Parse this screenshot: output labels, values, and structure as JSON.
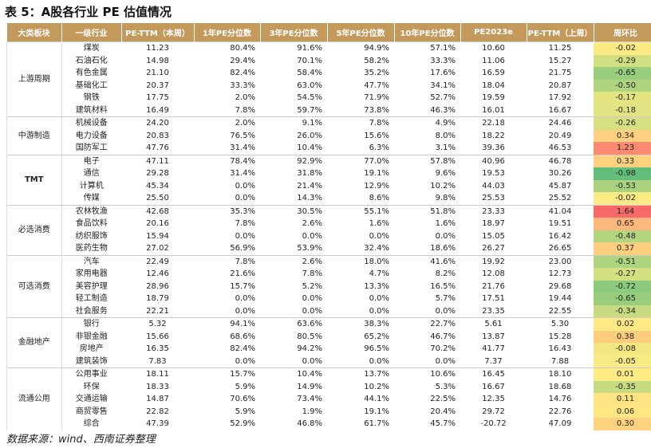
{
  "title": "表 5：A股各行业 PE 估值情况",
  "table": {
    "header": [
      "大类板块",
      "一级行业",
      "PE-TTM（本周）",
      "1年PE分位数",
      "3年PE分位数",
      "5年PE分位数",
      "10年PE分位数",
      "PE2023e",
      "PE-TTM（上周）",
      "周环比"
    ],
    "groups": [
      {
        "name": "上游周期",
        "rows": [
          [
            "煤炭",
            "11.23",
            "80.4%",
            "91.6%",
            "94.9%",
            "57.1%",
            "10.60",
            "11.25",
            "-0.02"
          ],
          [
            "石油石化",
            "14.98",
            "29.4%",
            "70.1%",
            "58.2%",
            "33.3%",
            "11.06",
            "15.27",
            "-0.29"
          ],
          [
            "有色金属",
            "21.10",
            "82.4%",
            "58.4%",
            "35.2%",
            "17.6%",
            "16.59",
            "21.75",
            "-0.65"
          ],
          [
            "基础化工",
            "20.37",
            "33.3%",
            "63.0%",
            "47.7%",
            "34.1%",
            "18.04",
            "20.87",
            "-0.50"
          ],
          [
            "钢铁",
            "17.75",
            "2.0%",
            "54.5%",
            "71.9%",
            "52.7%",
            "19.59",
            "17.92",
            "-0.17"
          ],
          [
            "建筑材料",
            "16.49",
            "7.8%",
            "59.7%",
            "73.8%",
            "46.3%",
            "16.01",
            "16.67",
            "-0.18"
          ]
        ]
      },
      {
        "name": "中游制造",
        "rows": [
          [
            "机械设备",
            "24.20",
            "2.0%",
            "9.1%",
            "7.8%",
            "4.9%",
            "22.18",
            "24.46",
            "-0.26"
          ],
          [
            "电力设备",
            "20.83",
            "76.5%",
            "26.0%",
            "15.6%",
            "8.0%",
            "18.22",
            "20.49",
            "0.34"
          ],
          [
            "国防军工",
            "47.76",
            "31.4%",
            "10.4%",
            "6.3%",
            "3.1%",
            "39.36",
            "46.53",
            "1.23"
          ]
        ]
      },
      {
        "name": "TMT",
        "rows": [
          [
            "电子",
            "47.11",
            "78.4%",
            "92.9%",
            "77.0%",
            "57.8%",
            "40.96",
            "46.78",
            "0.33"
          ],
          [
            "通信",
            "29.28",
            "31.4%",
            "31.8%",
            "19.1%",
            "9.6%",
            "19.53",
            "30.26",
            "-0.98"
          ],
          [
            "计算机",
            "45.34",
            "0.0%",
            "21.4%",
            "12.9%",
            "10.2%",
            "44.03",
            "45.87",
            "-0.53"
          ],
          [
            "传媒",
            "25.50",
            "0.0%",
            "14.3%",
            "8.6%",
            "9.8%",
            "25.53",
            "25.52",
            "-0.02"
          ]
        ]
      },
      {
        "name": "必选消费",
        "rows": [
          [
            "农林牧渔",
            "42.68",
            "35.3%",
            "30.5%",
            "55.1%",
            "51.8%",
            "23.33",
            "41.04",
            "1.64"
          ],
          [
            "食品饮料",
            "20.16",
            "7.8%",
            "2.6%",
            "1.6%",
            "1.6%",
            "18.97",
            "19.51",
            "0.65"
          ],
          [
            "纺织服饰",
            "15.94",
            "0.0%",
            "0.0%",
            "0.0%",
            "0.0%",
            "15.05",
            "16.42",
            "-0.48"
          ],
          [
            "医药生物",
            "27.02",
            "56.9%",
            "53.9%",
            "32.4%",
            "18.6%",
            "26.27",
            "26.65",
            "0.37"
          ]
        ]
      },
      {
        "name": "可选消费",
        "rows": [
          [
            "汽车",
            "22.49",
            "7.8%",
            "2.6%",
            "18.0%",
            "41.6%",
            "19.92",
            "23.00",
            "-0.51"
          ],
          [
            "家用电器",
            "12.46",
            "21.6%",
            "7.8%",
            "4.7%",
            "8.2%",
            "12.08",
            "12.73",
            "-0.27"
          ],
          [
            "美容护理",
            "28.96",
            "15.7%",
            "5.2%",
            "13.3%",
            "16.5%",
            "21.76",
            "29.68",
            "-0.72"
          ],
          [
            "轻工制造",
            "18.79",
            "0.0%",
            "0.0%",
            "0.0%",
            "5.7%",
            "17.51",
            "19.44",
            "-0.65"
          ],
          [
            "社会服务",
            "22.21",
            "0.0%",
            "0.0%",
            "0.0%",
            "0.0%",
            "23.35",
            "22.55",
            "-0.34"
          ]
        ]
      },
      {
        "name": "金融地产",
        "rows": [
          [
            "银行",
            "5.32",
            "94.1%",
            "63.6%",
            "38.3%",
            "22.7%",
            "5.61",
            "5.30",
            "0.02"
          ],
          [
            "非银金融",
            "15.66",
            "68.6%",
            "80.5%",
            "65.2%",
            "46.7%",
            "13.87",
            "15.28",
            "0.38"
          ],
          [
            "房地产",
            "16.35",
            "82.4%",
            "94.2%",
            "96.5%",
            "70.2%",
            "41.77",
            "16.43",
            "-0.08"
          ],
          [
            "建筑装饰",
            "7.83",
            "0.0%",
            "0.0%",
            "0.0%",
            "0.0%",
            "7.37",
            "7.88",
            "-0.05"
          ]
        ]
      },
      {
        "name": "流通公用",
        "rows": [
          [
            "公用事业",
            "18.11",
            "15.7%",
            "10.4%",
            "13.7%",
            "10.6%",
            "16.45",
            "18.10",
            "0.01"
          ],
          [
            "环保",
            "18.33",
            "5.9%",
            "14.9%",
            "10.2%",
            "5.3%",
            "16.67",
            "18.68",
            "-0.35"
          ],
          [
            "交通运输",
            "14.87",
            "70.6%",
            "73.4%",
            "44.1%",
            "22.5%",
            "12.35",
            "14.76",
            "0.11"
          ],
          [
            "商贸零售",
            "22.82",
            "5.9%",
            "1.9%",
            "19.1%",
            "20.4%",
            "29.72",
            "22.76",
            "0.06"
          ],
          [
            "综合",
            "47.39",
            "52.9%",
            "46.8%",
            "61.7%",
            "45.7%",
            "-20.72",
            "47.09",
            "0.30"
          ]
        ]
      }
    ]
  },
  "source": "数据来源：wind、西南证券整理"
}
